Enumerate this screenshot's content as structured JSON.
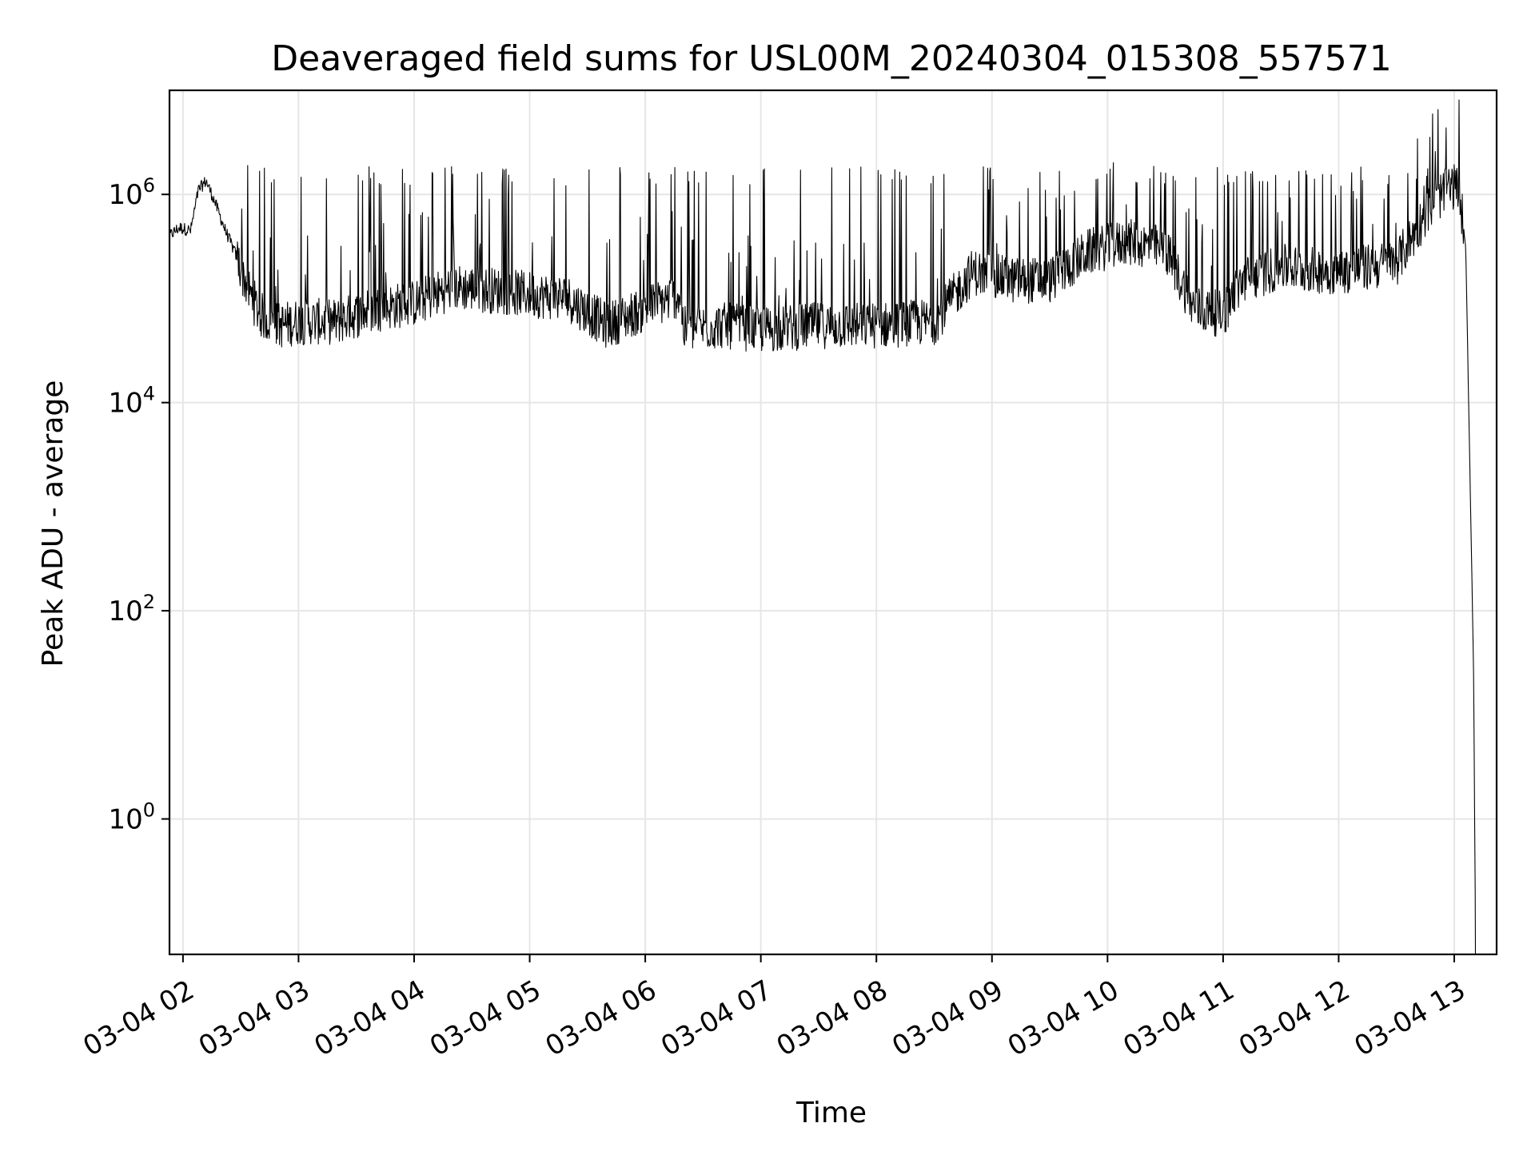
{
  "chart_data": {
    "type": "line",
    "title": "Deaveraged field sums for USL00M_20240304_015308_557571",
    "xlabel": "Time",
    "ylabel": "Peak ADU - average",
    "yscale": "log",
    "grid": true,
    "x_tick_labels": [
      "03-04 02",
      "03-04 03",
      "03-04 04",
      "03-04 05",
      "03-04 06",
      "03-04 07",
      "03-04 08",
      "03-04 09",
      "03-04 10",
      "03-04 11",
      "03-04 12",
      "03-04 13"
    ],
    "y_ticks": [
      {
        "value": 1,
        "base": "10",
        "exp": "0"
      },
      {
        "value": 100,
        "base": "10",
        "exp": "2"
      },
      {
        "value": 10000,
        "base": "10",
        "exp": "4"
      },
      {
        "value": 1000000,
        "base": "10",
        "exp": "6"
      }
    ],
    "xlim": [
      "2024-03-04 01:53",
      "2024-03-04 13:22"
    ],
    "ylim": [
      0.05,
      10000000
    ],
    "series": [
      {
        "color": "#000000",
        "points": [
          [
            "2024-03-04 01:53",
            400000
          ],
          [
            "2024-03-04 01:58",
            480000
          ],
          [
            "2024-03-04 02:04",
            450000
          ],
          [
            "2024-03-04 02:08",
            1100000
          ],
          [
            "2024-03-04 02:12",
            1350000
          ],
          [
            "2024-03-04 02:16",
            900000
          ],
          [
            "2024-03-04 02:22",
            450000
          ],
          [
            "2024-03-04 02:28",
            250000
          ],
          [
            "2024-03-04 02:34",
            120000
          ],
          [
            "2024-03-04 02:40",
            70000
          ],
          [
            "2024-03-04 02:50",
            55000
          ],
          [
            "2024-03-04 03:00",
            60000
          ],
          [
            "2024-03-04 03:20",
            60000
          ],
          [
            "2024-03-04 03:40",
            80000
          ],
          [
            "2024-03-04 04:00",
            90000
          ],
          [
            "2024-03-04 04:20",
            130000
          ],
          [
            "2024-03-04 04:40",
            120000
          ],
          [
            "2024-03-04 05:00",
            110000
          ],
          [
            "2024-03-04 05:20",
            100000
          ],
          [
            "2024-03-04 05:40",
            55000
          ],
          [
            "2024-03-04 06:00",
            80000
          ],
          [
            "2024-03-04 06:18",
            110000
          ],
          [
            "2024-03-04 06:20",
            50000
          ],
          [
            "2024-03-04 06:40",
            55000
          ],
          [
            "2024-03-04 07:00",
            50000
          ],
          [
            "2024-03-04 07:30",
            55000
          ],
          [
            "2024-03-04 08:00",
            55000
          ],
          [
            "2024-03-04 08:30",
            60000
          ],
          [
            "2024-03-04 08:50",
            180000
          ],
          [
            "2024-03-04 09:10",
            150000
          ],
          [
            "2024-03-04 09:30",
            150000
          ],
          [
            "2024-03-04 09:50",
            280000
          ],
          [
            "2024-03-04 10:10",
            350000
          ],
          [
            "2024-03-04 10:30",
            300000
          ],
          [
            "2024-03-04 10:45",
            80000
          ],
          [
            "2024-03-04 11:00",
            70000
          ],
          [
            "2024-03-04 11:10",
            150000
          ],
          [
            "2024-03-04 11:30",
            200000
          ],
          [
            "2024-03-04 12:00",
            180000
          ],
          [
            "2024-03-04 12:30",
            220000
          ],
          [
            "2024-03-04 12:50",
            900000
          ],
          [
            "2024-03-04 13:00",
            1200000
          ],
          [
            "2024-03-04 13:03",
            1000000
          ],
          [
            "2024-03-04 13:06",
            300000
          ],
          [
            "2024-03-04 13:08",
            3000
          ],
          [
            "2024-03-04 13:10",
            30
          ],
          [
            "2024-03-04 13:11",
            0.1
          ]
        ]
      }
    ]
  }
}
